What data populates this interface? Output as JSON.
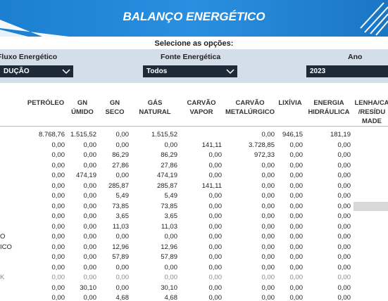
{
  "header": {
    "title": "BALANÇO ENERGÉTICO"
  },
  "filters": {
    "prompt": "Selecione as opções:",
    "items": [
      {
        "label": "Fluxo Energético",
        "value": "DUÇÃO"
      },
      {
        "label": "Fonte Energética",
        "value": "Todos"
      },
      {
        "label": "Ano",
        "value": "2023"
      }
    ]
  },
  "table": {
    "columns": [
      [
        "PETRÓLEO"
      ],
      [
        "GN",
        "ÚMIDO"
      ],
      [
        "GN",
        "SECO"
      ],
      [
        "GÁS",
        "NATURAL"
      ],
      [
        "CARVÃO",
        "VAPOR"
      ],
      [
        "CARVÃO",
        "METALÚRGICO"
      ],
      [
        "LIXÍVIA"
      ],
      [
        "ENERGIA",
        "HIDRÁULICA"
      ],
      [
        "LENHA/CA",
        "/RESÍDU",
        "MADE"
      ]
    ],
    "rows": [
      {
        "values": [
          "8.768,76",
          "1.515,52",
          "0,00",
          "1.515,52",
          null,
          "0,00",
          "946,15",
          "181,19"
        ]
      },
      {
        "values": [
          "0,00",
          "0,00",
          "0,00",
          "0,00",
          "141,11",
          "3.728,85",
          "0,00",
          "0,00"
        ]
      },
      {
        "values": [
          "0,00",
          "0,00",
          "86,29",
          "86,29",
          "0,00",
          "972,33",
          "0,00",
          "0,00"
        ]
      },
      {
        "values": [
          "0,00",
          "0,00",
          "27,86",
          "27,86",
          "0,00",
          "0,00",
          "0,00",
          "0,00"
        ]
      },
      {
        "values": [
          "0,00",
          "474,19",
          "0,00",
          "474,19",
          "0,00",
          "0,00",
          "0,00",
          "0,00"
        ]
      },
      {
        "values": [
          "0,00",
          "0,00",
          "285,87",
          "285,87",
          "141,11",
          "0,00",
          "0,00",
          "0,00"
        ]
      },
      {
        "values": [
          "0,00",
          "0,00",
          "5,49",
          "5,49",
          "0,00",
          "0,00",
          "0,00",
          "0,00"
        ]
      },
      {
        "values": [
          "0,00",
          "0,00",
          "73,85",
          "73,85",
          "0,00",
          "0,00",
          "0,00",
          "0,00"
        ]
      },
      {
        "values": [
          "0,00",
          "0,00",
          "3,65",
          "3,65",
          "0,00",
          "0,00",
          "0,00",
          "0,00"
        ]
      },
      {
        "values": [
          "0,00",
          "0,00",
          "11,03",
          "11,03",
          "0,00",
          "0,00",
          "0,00",
          "0,00"
        ]
      },
      {
        "label": "O",
        "values": [
          "0,00",
          "0,00",
          "0,00",
          "0,00",
          "0,00",
          "0,00",
          "0,00",
          "0,00"
        ]
      },
      {
        "label": "ICO",
        "values": [
          "0,00",
          "0,00",
          "12,96",
          "12,96",
          "0,00",
          "0,00",
          "0,00",
          "0,00"
        ]
      },
      {
        "values": [
          "0,00",
          "0,00",
          "57,89",
          "57,89",
          "0,00",
          "0,00",
          "0,00",
          "0,00"
        ]
      },
      {
        "values": [
          "0,00",
          "0,00",
          "0,00",
          "0,00",
          "0,00",
          "0,00",
          "0,00",
          "0,00"
        ]
      },
      {
        "label": "K",
        "values": [
          "0,00",
          "0,00",
          "0,00",
          "0,00",
          "0,00",
          "0,00",
          "0,00",
          "0,00"
        ]
      },
      {
        "values": [
          "0,00",
          "30,10",
          "0,00",
          "30,10",
          "0,00",
          "0,00",
          "0,00",
          "0,00"
        ]
      },
      {
        "values": [
          "0,00",
          "0,00",
          "4,68",
          "4,68",
          "0,00",
          "0,00",
          "0,00",
          "0,00"
        ]
      }
    ]
  }
}
